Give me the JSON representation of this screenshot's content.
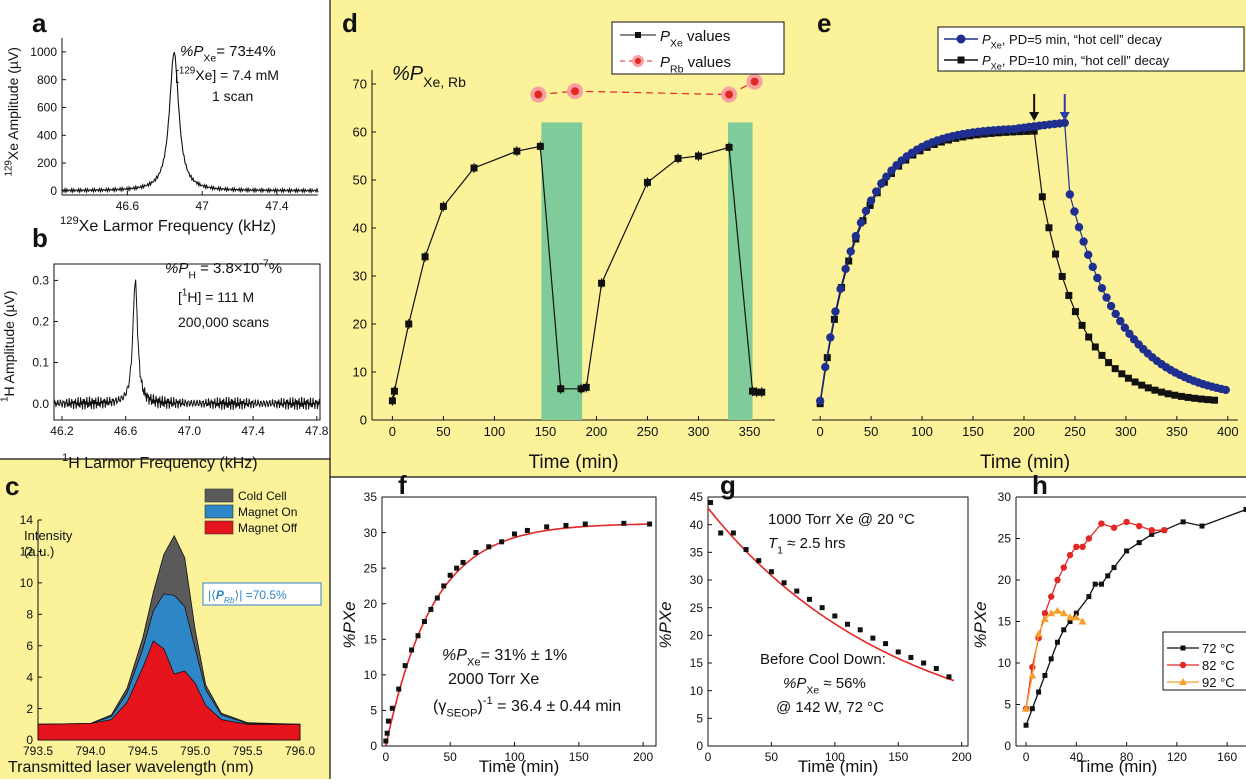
{
  "panels": {
    "a": {
      "letter": "a"
    },
    "b": {
      "letter": "b"
    },
    "c": {
      "letter": "c"
    },
    "d": {
      "letter": "d"
    },
    "e": {
      "letter": "e"
    },
    "f": {
      "letter": "f"
    },
    "g": {
      "letter": "g"
    },
    "h": {
      "letter": "h"
    }
  },
  "colors": {
    "yellow_bg": "#fbf29a",
    "green_band": "#7fcc9a",
    "blue_series": "#1f2f8f",
    "red_fit": "#e32626",
    "orange_series": "#f5a02a",
    "cold_cell": "#5a5a5a",
    "magnet_on": "#2f86c7",
    "magnet_off": "#e5141c"
  },
  "chart_data": [
    {
      "panel": "a",
      "type": "line",
      "ylabel": "129Xe Amplitude (µV)",
      "xlabel": "129Xe Larmor Frequency (kHz)",
      "xlim": [
        46.25,
        47.62
      ],
      "ylim": [
        -30,
        1100
      ],
      "xticks": [
        46.6,
        47.0,
        47.4
      ],
      "yticks": [
        0,
        200,
        400,
        600,
        800,
        1000
      ],
      "peak_center": 46.85,
      "peak_height": 1000,
      "peak_hwhm": 0.03,
      "annotations": [
        "%P",
        "Xe",
        "= 73±4%",
        "[",
        "129",
        "Xe] = 7.4 mM",
        "1 scan"
      ]
    },
    {
      "panel": "b",
      "type": "line",
      "ylabel": "1H Amplitude (µV)",
      "xlabel": "1H Larmor Frequency (kHz)",
      "xlim": [
        46.15,
        47.82
      ],
      "ylim": [
        -0.04,
        0.34
      ],
      "xticks": [
        46.2,
        46.6,
        47.0,
        47.4,
        47.8
      ],
      "yticks": [
        0.0,
        0.1,
        0.2,
        0.3
      ],
      "peak_center": 46.66,
      "peak_height": 0.3,
      "peak_hwhm": 0.018,
      "annotations": [
        "%P",
        "H",
        " = 3.8×10",
        "-7",
        "%",
        "[",
        "1",
        "H] = 111 M",
        "200,000 scans"
      ]
    },
    {
      "panel": "c",
      "type": "area",
      "ylabel": "Intensity (a.u.)",
      "xlabel": "Transmitted laser wavelength (nm)",
      "xlim": [
        793.5,
        796.0
      ],
      "ylim": [
        0,
        14
      ],
      "xticks": [
        793.5,
        794.0,
        794.5,
        795.0,
        795.5,
        796.0
      ],
      "yticks": [
        0,
        2,
        4,
        6,
        8,
        10,
        12,
        14
      ],
      "x": [
        793.5,
        794.0,
        794.2,
        794.35,
        794.5,
        794.6,
        794.7,
        794.8,
        794.9,
        795.0,
        795.1,
        795.25,
        795.5,
        796.0
      ],
      "series": [
        {
          "name": "Cold Cell",
          "values": [
            1,
            1.05,
            1.6,
            3.3,
            6.5,
            9.4,
            11.8,
            13.0,
            11.6,
            7.0,
            3.5,
            1.7,
            1.1,
            1
          ]
        },
        {
          "name": "Magnet On",
          "values": [
            1,
            1.05,
            1.5,
            3.0,
            5.8,
            8.2,
            9.3,
            9.2,
            8.5,
            5.8,
            3.2,
            1.6,
            1.05,
            1
          ]
        },
        {
          "name": "Magnet Off",
          "values": [
            1,
            1.05,
            1.3,
            2.4,
            4.6,
            6.3,
            5.8,
            4.2,
            4.4,
            3.6,
            2.2,
            1.3,
            1.0,
            1
          ]
        }
      ],
      "annotation_pre": "|⟨",
      "annotation_sym": "P",
      "annotation_sub": "Rb",
      "annotation_post": "⟩| =70.5%"
    },
    {
      "panel": "d",
      "type": "line",
      "xlabel": "Time (min)",
      "xlim": [
        -20,
        375
      ],
      "ylim": [
        0,
        75
      ],
      "xticks": [
        0,
        50,
        100,
        150,
        200,
        250,
        300,
        350
      ],
      "yticks": [
        0,
        10,
        20,
        30,
        40,
        50,
        60,
        70
      ],
      "bands": [
        [
          146,
          186
        ],
        [
          329,
          353
        ]
      ],
      "title_sym": "%P",
      "title_sub": "Xe, Rb",
      "series": [
        {
          "name_sym": "P",
          "name_sub": "Xe",
          "name_post": " values",
          "x": [
            0,
            2,
            16,
            32,
            50,
            80,
            122,
            145,
            165,
            185,
            190,
            205,
            250,
            280,
            300,
            330,
            353,
            357,
            362
          ],
          "y": [
            4,
            6,
            20,
            34,
            44.5,
            52.5,
            56,
            57,
            6.5,
            6.5,
            6.8,
            28.5,
            49.5,
            54.5,
            55,
            56.8,
            6,
            5.8,
            5.8
          ]
        },
        {
          "name_sym": "P",
          "name_sub": "Rb",
          "name_post": " values",
          "x": [
            143,
            179,
            330,
            355
          ],
          "y": [
            67.8,
            68.5,
            67.8,
            70.5
          ]
        }
      ]
    },
    {
      "panel": "e",
      "type": "line",
      "xlabel": "Time (min)",
      "xlim": [
        -8,
        410
      ],
      "ylim": [
        0,
        75
      ],
      "xticks": [
        0,
        50,
        100,
        150,
        200,
        250,
        300,
        350,
        400
      ],
      "arrows": [
        210,
        240
      ],
      "series": [
        {
          "name_sym": "P",
          "name_sub": "Xe",
          "name_post": ", PD=5 min, “hot cell” decay",
          "decay_start": 240
        },
        {
          "name_sym": "P",
          "name_sub": "Xe",
          "name_post": ", PD=10 min, “hot cell” decay",
          "decay_start": 210
        }
      ]
    },
    {
      "panel": "f",
      "type": "scatter",
      "ylabel": "%PXe",
      "xlabel": "Time (min)",
      "xlim": [
        -3,
        210
      ],
      "ylim": [
        0,
        35
      ],
      "xticks": [
        0,
        50,
        100,
        150,
        200
      ],
      "yticks": [
        0,
        5,
        10,
        15,
        20,
        25,
        30,
        35
      ],
      "x": [
        0,
        1,
        2,
        5,
        10,
        15,
        20,
        25,
        30,
        35,
        40,
        45,
        50,
        55,
        60,
        70,
        80,
        90,
        100,
        110,
        125,
        140,
        155,
        185,
        205
      ],
      "y": [
        0.7,
        1.8,
        3.5,
        5.3,
        8.0,
        11.3,
        13.5,
        15.5,
        17.5,
        19.2,
        20.8,
        22.5,
        24.0,
        25.0,
        25.8,
        27.2,
        28.0,
        28.7,
        29.8,
        30.3,
        30.8,
        31.0,
        31.2,
        31.3,
        31.2
      ],
      "fit": {
        "A": 31.3,
        "tau": 36.4
      },
      "annotations": [
        "%P",
        "Xe",
        "= 31% ± 1%",
        "2000 Torr Xe",
        "(γ",
        "SEOP",
        ")",
        "-1",
        " = 36.4 ± 0.44 min"
      ]
    },
    {
      "panel": "g",
      "type": "scatter",
      "ylabel": "%PXe",
      "xlabel": "Time (min)",
      "xlim": [
        0,
        205
      ],
      "ylim": [
        0,
        45
      ],
      "xticks": [
        0,
        50,
        100,
        150,
        200
      ],
      "yticks": [
        0,
        5,
        10,
        15,
        20,
        25,
        30,
        35,
        40,
        45
      ],
      "x": [
        2,
        10,
        20,
        30,
        40,
        50,
        60,
        70,
        80,
        90,
        100,
        110,
        120,
        130,
        140,
        150,
        160,
        170,
        180,
        190
      ],
      "y": [
        44,
        38.5,
        38.5,
        35.5,
        33.5,
        31.5,
        29.5,
        28,
        26.5,
        25,
        23.5,
        22,
        21,
        19.5,
        18.5,
        17,
        16,
        15,
        14,
        12.5
      ],
      "fit": {
        "A": 43,
        "tau": 150
      },
      "annotations": [
        "1000 Torr Xe @ 20 °C",
        "T",
        "1",
        " ≈ 2.5 hrs",
        "Before Cool Down:",
        "%P",
        "Xe",
        " ≈ 56%",
        "@ 142 W, 72 °C"
      ]
    },
    {
      "panel": "h",
      "type": "line",
      "ylabel": "%PXe",
      "xlabel": "Time (min)",
      "xlim": [
        -8,
        175
      ],
      "ylim": [
        0,
        30
      ],
      "xticks": [
        0,
        40,
        80,
        120,
        160
      ],
      "yticks": [
        0,
        5,
        10,
        15,
        20,
        25,
        30
      ],
      "series": [
        {
          "name": "72 °C",
          "x": [
            0,
            5,
            10,
            15,
            20,
            25,
            30,
            35,
            40,
            50,
            55,
            60,
            65,
            70,
            80,
            90,
            100,
            110,
            125,
            140,
            175
          ],
          "y": [
            2.5,
            4.5,
            6.5,
            8.5,
            10.5,
            12.5,
            14,
            15,
            16,
            18,
            19.5,
            19.5,
            20.5,
            21.5,
            23.5,
            24.5,
            25.5,
            26,
            27,
            26.5,
            28.5
          ]
        },
        {
          "name": "82 °C",
          "x": [
            0,
            5,
            10,
            15,
            20,
            25,
            30,
            35,
            40,
            45,
            50,
            60,
            70,
            80,
            90,
            100,
            110
          ],
          "y": [
            4.5,
            9.5,
            13,
            16,
            18,
            20,
            21.5,
            23,
            24,
            24,
            25,
            26.8,
            26.3,
            27,
            26.5,
            26,
            26
          ]
        },
        {
          "name": "92 °C",
          "x": [
            0,
            5,
            10,
            15,
            20,
            25,
            30,
            35,
            40,
            45
          ],
          "y": [
            4.5,
            8.5,
            13.5,
            15.3,
            16,
            16.3,
            16,
            15.5,
            15.5,
            15
          ]
        }
      ]
    }
  ]
}
